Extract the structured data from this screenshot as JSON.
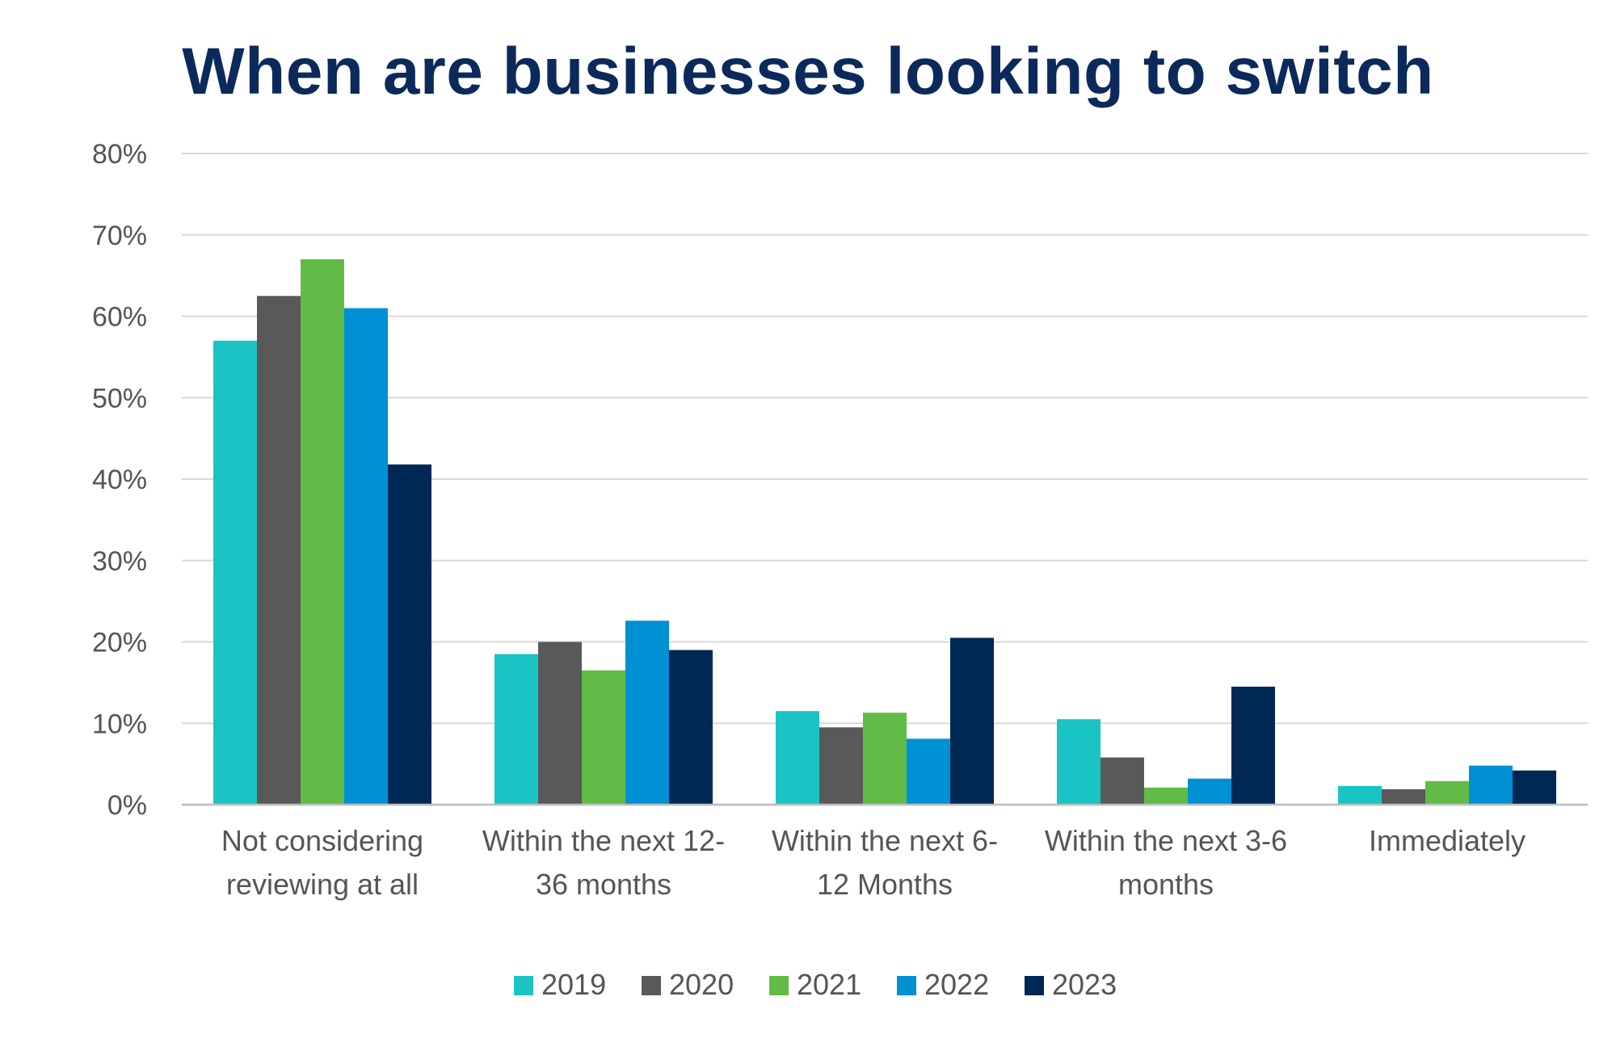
{
  "chart_data": {
    "type": "bar",
    "title": "When are businesses looking to switch",
    "xlabel": "",
    "ylabel": "",
    "ylim": [
      0,
      80
    ],
    "yticks": [
      "0%",
      "10%",
      "20%",
      "30%",
      "40%",
      "50%",
      "60%",
      "70%",
      "80%"
    ],
    "grid": true,
    "legend_position": "bottom",
    "categories": [
      [
        "Not considering",
        "reviewing at all"
      ],
      [
        "Within the next 12-",
        "36 months"
      ],
      [
        "Within the next 6-",
        "12 Months"
      ],
      [
        "Within the next 3-6",
        "months"
      ],
      [
        "Immediately"
      ]
    ],
    "series": [
      {
        "name": "2019",
        "color": "#1bc4c4",
        "values": [
          57,
          18.5,
          11.5,
          10.5,
          2.3
        ]
      },
      {
        "name": "2020",
        "color": "#595959",
        "values": [
          62.5,
          20,
          9.5,
          5.8,
          1.9
        ]
      },
      {
        "name": "2021",
        "color": "#62bb46",
        "values": [
          67,
          16.5,
          11.3,
          2.1,
          2.9
        ]
      },
      {
        "name": "2022",
        "color": "#0090d4",
        "values": [
          61,
          22.6,
          8.1,
          3.2,
          4.8
        ]
      },
      {
        "name": "2023",
        "color": "#002855",
        "values": [
          41.8,
          19,
          20.5,
          14.5,
          4.2
        ]
      }
    ]
  }
}
